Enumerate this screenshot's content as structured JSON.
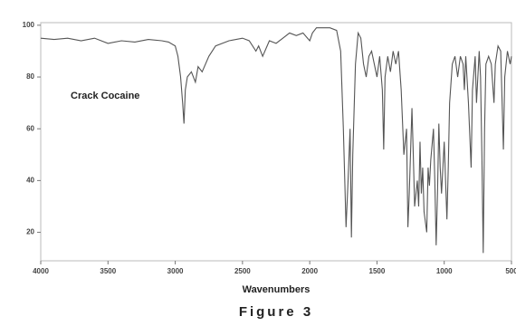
{
  "chart_data": {
    "type": "line",
    "annotation": "Crack Cocaine",
    "x_label": "Wavenumbers",
    "caption": "Figure 3",
    "color": "#555555",
    "xlim": [
      4000,
      500
    ],
    "ylim": [
      9,
      101
    ],
    "xticks": [
      4000,
      3500,
      3000,
      2500,
      2000,
      1500,
      1000,
      500
    ],
    "yticks": [
      20,
      40,
      60,
      80,
      100
    ],
    "x": [
      4000,
      3900,
      3800,
      3700,
      3600,
      3500,
      3400,
      3300,
      3200,
      3100,
      3050,
      3000,
      2980,
      2960,
      2945,
      2935,
      2925,
      2910,
      2880,
      2850,
      2830,
      2800,
      2750,
      2700,
      2600,
      2500,
      2450,
      2400,
      2380,
      2350,
      2300,
      2250,
      2200,
      2150,
      2100,
      2050,
      2000,
      1980,
      1950,
      1900,
      1850,
      1800,
      1770,
      1750,
      1730,
      1715,
      1700,
      1690,
      1680,
      1660,
      1640,
      1620,
      1600,
      1580,
      1560,
      1540,
      1520,
      1500,
      1480,
      1460,
      1450,
      1440,
      1420,
      1400,
      1380,
      1360,
      1340,
      1320,
      1300,
      1280,
      1270,
      1260,
      1240,
      1230,
      1220,
      1200,
      1190,
      1180,
      1170,
      1160,
      1150,
      1130,
      1120,
      1110,
      1100,
      1080,
      1070,
      1060,
      1050,
      1040,
      1030,
      1020,
      1000,
      990,
      980,
      970,
      960,
      940,
      920,
      900,
      880,
      860,
      850,
      840,
      820,
      800,
      790,
      770,
      760,
      740,
      730,
      720,
      710,
      700,
      690,
      670,
      650,
      630,
      620,
      600,
      580,
      560,
      550,
      530,
      510,
      500
    ],
    "values": [
      95,
      94.5,
      95,
      94,
      95,
      93,
      94,
      93.5,
      94.5,
      94,
      93.5,
      92,
      88,
      80,
      70,
      62,
      75,
      80,
      82,
      78,
      84,
      82,
      88,
      92,
      94,
      95,
      94,
      90,
      92,
      88,
      94,
      93,
      95,
      97,
      96,
      97,
      94,
      97,
      99,
      99,
      99,
      98,
      90,
      60,
      22,
      40,
      60,
      18,
      50,
      85,
      97,
      95,
      85,
      80,
      88,
      90,
      85,
      80,
      88,
      75,
      52,
      80,
      88,
      82,
      90,
      85,
      90,
      75,
      50,
      60,
      22,
      35,
      68,
      50,
      30,
      40,
      30,
      55,
      35,
      45,
      28,
      20,
      45,
      38,
      48,
      60,
      40,
      15,
      35,
      62,
      45,
      35,
      55,
      40,
      25,
      45,
      70,
      85,
      88,
      80,
      88,
      85,
      75,
      88,
      70,
      45,
      75,
      88,
      70,
      90,
      80,
      50,
      12,
      60,
      85,
      88,
      85,
      70,
      85,
      92,
      90,
      52,
      80,
      90,
      85,
      88
    ]
  }
}
